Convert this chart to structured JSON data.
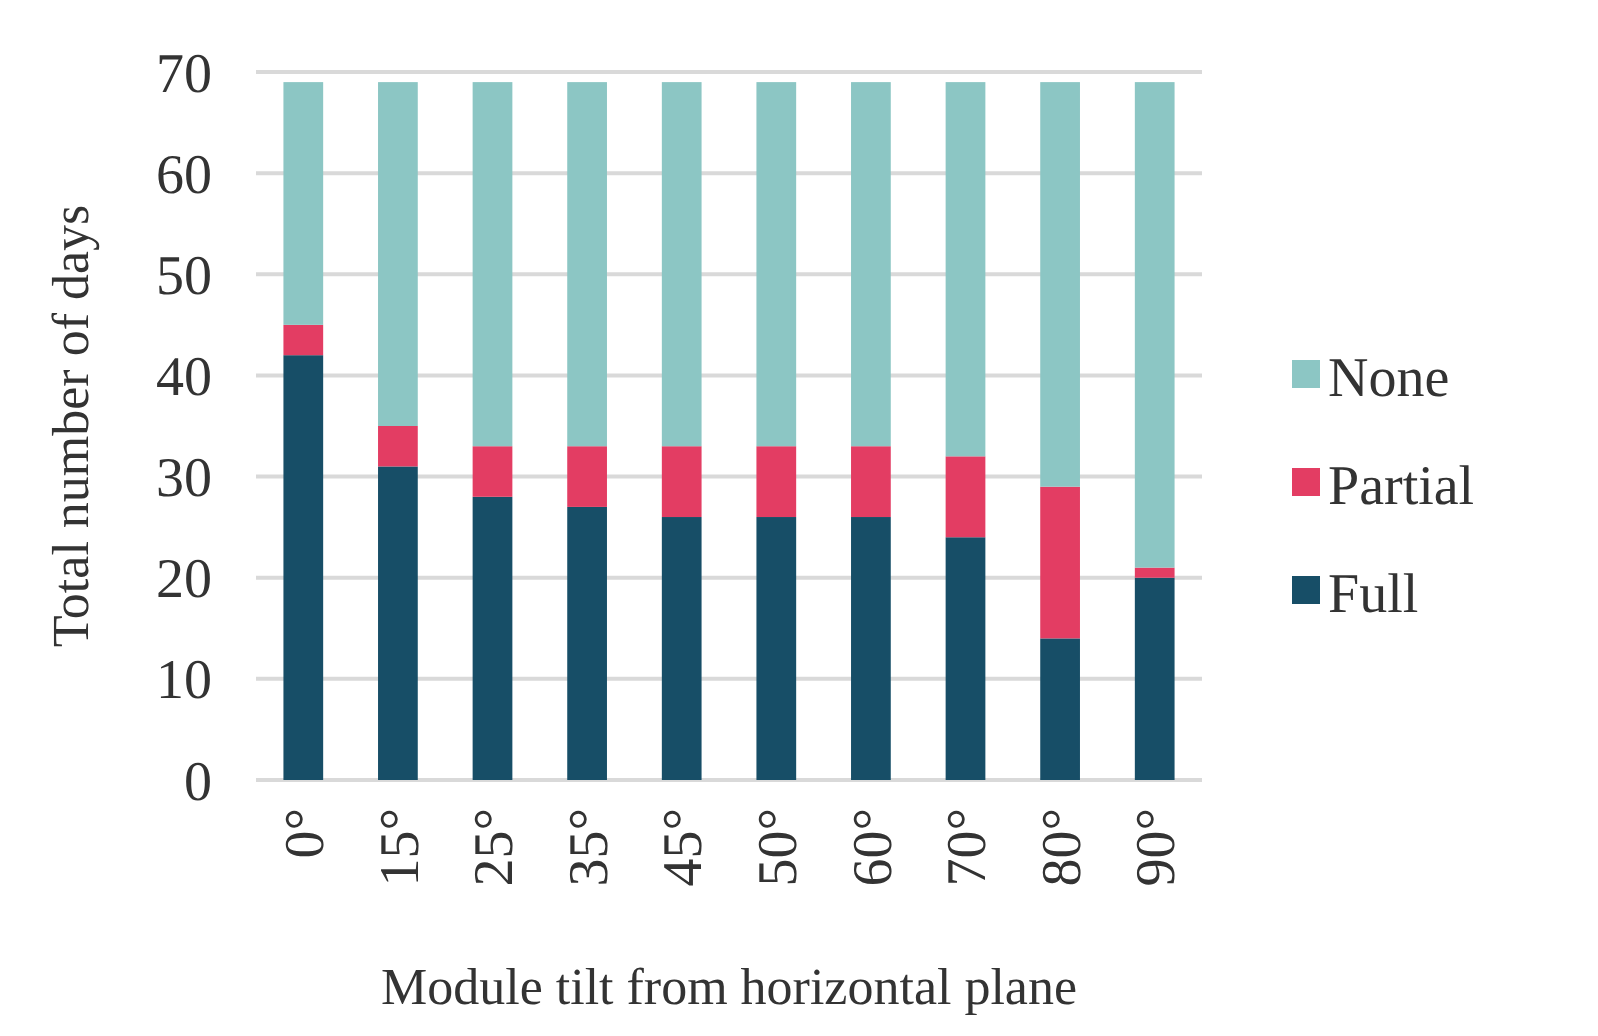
{
  "chart_data": {
    "type": "bar",
    "stacked": true,
    "xlabel": "Module tilt from horizontal plane",
    "ylabel": "Total number of days",
    "categories": [
      "0°",
      "15°",
      "25°",
      "35°",
      "45°",
      "50°",
      "60°",
      "70°",
      "80°",
      "90°"
    ],
    "series": [
      {
        "name": "Full",
        "color": "#174e67",
        "values": [
          42,
          31,
          28,
          27,
          26,
          26,
          26,
          24,
          14,
          20
        ]
      },
      {
        "name": "Partial",
        "color": "#e33d63",
        "values": [
          3,
          4,
          5,
          6,
          7,
          7,
          7,
          8,
          15,
          1
        ]
      },
      {
        "name": "None",
        "color": "#8cc6c4",
        "values": [
          24,
          34,
          36,
          36,
          36,
          36,
          36,
          37,
          40,
          48
        ]
      }
    ],
    "ylim": [
      0,
      70
    ],
    "yticks": [
      0,
      10,
      20,
      30,
      40,
      50,
      60,
      70
    ],
    "grid": "y",
    "legend": "right"
  }
}
